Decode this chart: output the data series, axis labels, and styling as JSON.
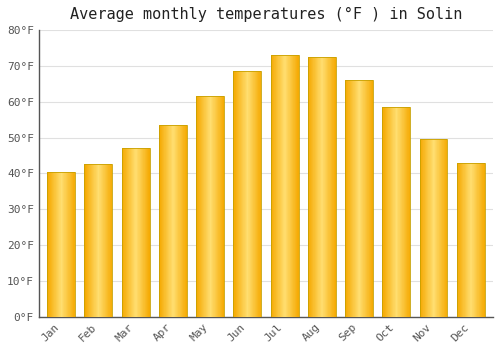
{
  "title": "Average monthly temperatures (°F ) in Solin",
  "months": [
    "Jan",
    "Feb",
    "Mar",
    "Apr",
    "May",
    "Jun",
    "Jul",
    "Aug",
    "Sep",
    "Oct",
    "Nov",
    "Dec"
  ],
  "values": [
    40.5,
    42.5,
    47.0,
    53.5,
    61.5,
    68.5,
    73.0,
    72.5,
    66.0,
    58.5,
    49.5,
    43.0
  ],
  "bar_color_center": "#FFD966",
  "bar_color_edge": "#F5A800",
  "bar_outline_color": "#C8A000",
  "background_color": "#FFFFFF",
  "plot_bg_color": "#FFFFFF",
  "ylim": [
    0,
    80
  ],
  "ytick_step": 10,
  "title_fontsize": 11,
  "tick_fontsize": 8,
  "grid_color": "#E0E0E0",
  "axis_color": "#555555",
  "label_color": "#555555"
}
